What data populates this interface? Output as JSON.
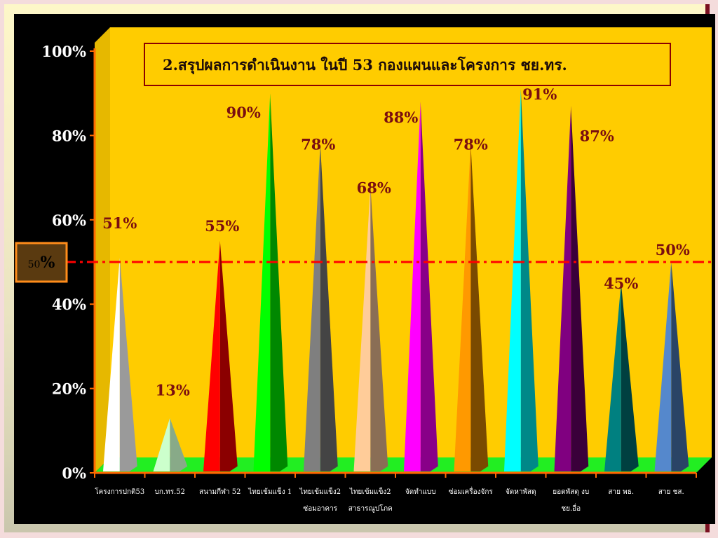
{
  "slide": {
    "background": "#000000",
    "frame_color": "#7a1020"
  },
  "chart_data": {
    "type": "bar",
    "style": "3d-cone",
    "title": "2.สรุปผลการดำเนินงาน ในปี 53      กองแผนและโครงการ ชย.ทร.",
    "ylim": [
      0,
      100
    ],
    "y_ticks": [
      "0%",
      "20%",
      "40%",
      "60%",
      "80%",
      "100%"
    ],
    "y_tick_values": [
      0,
      20,
      40,
      60,
      80,
      100
    ],
    "grid": false,
    "plot_background": "#ffcc00",
    "floor_color": "#22ee22",
    "categories": [
      [
        "โครงการปกติ53"
      ],
      [
        "บก.ทร.52"
      ],
      [
        "สนามกีฬา 52"
      ],
      [
        "ไทยเข้มแข็ง 1"
      ],
      [
        "ไทยเข้มแข็ง2",
        "ซ่อมอาคาร"
      ],
      [
        "ไทยเข้มแข็ง2",
        "สาธารณูปโภค"
      ],
      [
        "จัดทำแบบ"
      ],
      [
        "ซ่อมเครื่องจักร"
      ],
      [
        "จัดหาพัสดุ"
      ],
      [
        "ยอดพัสดุ งบ",
        "ชย.อื่อ"
      ],
      [
        "สาย พธ."
      ],
      [
        "สาย ชส."
      ]
    ],
    "values": [
      51,
      13,
      55,
      90,
      78,
      68,
      88,
      78,
      91,
      87,
      45,
      50
    ],
    "data_labels": [
      "51%",
      "13%",
      "55%",
      "90%",
      "78%",
      "68%",
      "88%",
      "78%",
      "91%",
      "87%",
      "45%",
      "50%"
    ],
    "colors": [
      [
        "#ffffff",
        "#9a9a9a"
      ],
      [
        "#ccffcc",
        "#88aa88"
      ],
      [
        "#ff0000",
        "#8b0000"
      ],
      [
        "#00ff00",
        "#008800"
      ],
      [
        "#7f7f7f",
        "#444444"
      ],
      [
        "#ffcc99",
        "#8a6e55"
      ],
      [
        "#ff00ff",
        "#880088"
      ],
      [
        "#ff9900",
        "#7a4a00"
      ],
      [
        "#00ffff",
        "#008888"
      ],
      [
        "#800080",
        "#3a003a"
      ],
      [
        "#008080",
        "#004040"
      ],
      [
        "#5588cc",
        "#2a4466"
      ]
    ],
    "reference_line": {
      "value": 50,
      "label_number": "50",
      "label_unit": "%",
      "color": "#ff0000"
    }
  }
}
